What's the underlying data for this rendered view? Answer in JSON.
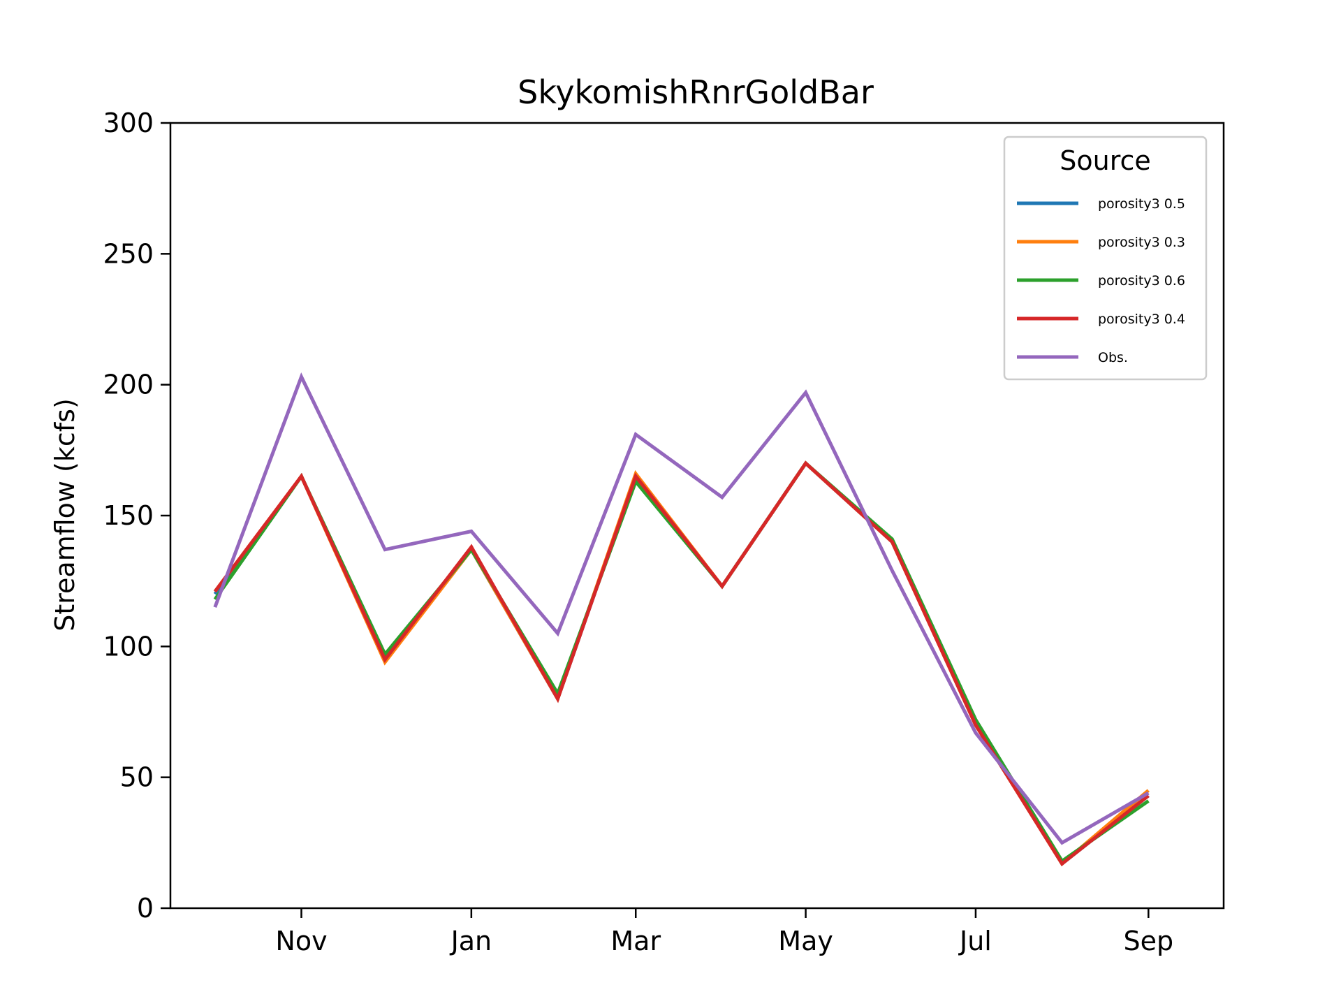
{
  "chart_data": {
    "type": "line",
    "title": "SkykomishRnrGoldBar",
    "xlabel": "",
    "ylabel": "Streamflow (kcfs)",
    "ylim": [
      0,
      300
    ],
    "yticks": [
      0,
      50,
      100,
      150,
      200,
      250,
      300
    ],
    "x": [
      "2022-10-01",
      "2022-11-01",
      "2022-12-01",
      "2023-01-01",
      "2023-02-01",
      "2023-03-01",
      "2023-04-01",
      "2023-05-01",
      "2023-06-01",
      "2023-07-01",
      "2023-08-01",
      "2023-09-01"
    ],
    "xlim": [
      "2022-09-15",
      "2023-09-28"
    ],
    "xtick_labels": [
      {
        "label": "Nov",
        "date": "2022-11-01"
      },
      {
        "label": "Jan",
        "date": "2023-01-01"
      },
      {
        "label": "Mar",
        "date": "2023-03-01"
      },
      {
        "label": "May",
        "date": "2023-05-01"
      },
      {
        "label": "Jul",
        "date": "2023-07-01"
      },
      {
        "label": "Sep",
        "date": "2023-09-01"
      }
    ],
    "grid": false,
    "legend": {
      "title": "Source",
      "placement": "top-right"
    },
    "series": [
      {
        "name": "porosity3 0.5",
        "color": "#1f77b4",
        "values": [
          120,
          165,
          95,
          137,
          80,
          165,
          123,
          170,
          140,
          71,
          17,
          43
        ]
      },
      {
        "name": "porosity3 0.3",
        "color": "#ff7f0e",
        "values": [
          121,
          165,
          94,
          137,
          80,
          166,
          123,
          170,
          140,
          70,
          17,
          45
        ]
      },
      {
        "name": "porosity3 0.6",
        "color": "#2ca02c",
        "values": [
          118,
          165,
          97,
          137,
          82,
          163,
          123,
          170,
          141,
          72,
          18,
          41
        ]
      },
      {
        "name": "porosity3 0.4",
        "color": "#d62728",
        "values": [
          121,
          165,
          95,
          138,
          80,
          165,
          123,
          170,
          140,
          70,
          17,
          43
        ]
      },
      {
        "name": "Obs.",
        "color": "#9467bd",
        "values": [
          115,
          203,
          137,
          144,
          105,
          181,
          157,
          197,
          129,
          67,
          25,
          44
        ]
      }
    ]
  }
}
